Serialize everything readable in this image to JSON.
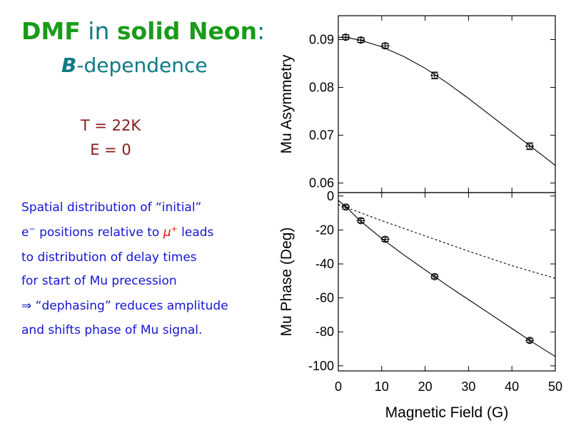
{
  "slide": {
    "title_part1": "DMF",
    "title_part2": " in ",
    "title_part3": "solid Neon",
    "title_part4": ":",
    "subtitle_symbol": "B",
    "subtitle_rest": "-dependence",
    "condition_temperature": "T = 22K",
    "condition_field": "E = 0",
    "description": {
      "line1": "Spatial distribution of “initial”",
      "line2_e": "e",
      "line2_e_sup": "−",
      "line2_mid": " positions relative to ",
      "line2_mu": "μ",
      "line2_mu_sup": "+",
      "line2_end": " leads",
      "line3": "to distribution of delay times",
      "line4": "for start of Mu precession",
      "line5": "⇒ “dephasing” reduces amplitude",
      "line6": "and shifts phase of Mu signal."
    }
  },
  "colors": {
    "title_green": "#1a9b1a",
    "subtitle_teal": "#107a86",
    "conditions_maroon": "#8b1a1a",
    "text_blue": "#1414d4",
    "mu_red": "#e01010"
  },
  "chart_data": [
    {
      "type": "scatter",
      "panel": "top",
      "ylabel": "Mu Asymmetry",
      "xlim": [
        0,
        50
      ],
      "ylim": [
        0.058,
        0.095
      ],
      "yticks": [
        0.06,
        0.07,
        0.08,
        0.09
      ],
      "ytick_labels": [
        "0.06",
        "0.07",
        "0.08",
        "0.09"
      ],
      "grid": false,
      "points": {
        "x": [
          1.7,
          5.2,
          10.8,
          22.2,
          44.1
        ],
        "y": [
          0.0905,
          0.0899,
          0.0887,
          0.0825,
          0.0677
        ],
        "xerr": [
          1.0,
          1.0,
          1.0,
          0.9,
          1.0
        ],
        "yerr": [
          0.0005,
          0.0005,
          0.0005,
          0.0007,
          0.0007
        ]
      },
      "fit_curve": {
        "style": "solid",
        "x": [
          0,
          2,
          5,
          10,
          15,
          20,
          25,
          30,
          35,
          40,
          45,
          50
        ],
        "y": [
          0.0905,
          0.0904,
          0.0899,
          0.0885,
          0.0865,
          0.084,
          0.081,
          0.0777,
          0.0742,
          0.0707,
          0.0672,
          0.0637
        ]
      }
    },
    {
      "type": "scatter",
      "panel": "bottom",
      "xlabel": "Magnetic Field (G)",
      "ylabel": "Mu Phase (Deg)",
      "xlim": [
        0,
        50
      ],
      "ylim": [
        -103,
        2
      ],
      "xticks": [
        0,
        10,
        20,
        30,
        40,
        50
      ],
      "xtick_labels": [
        "0",
        "10",
        "20",
        "30",
        "40",
        "50"
      ],
      "yticks": [
        0,
        -20,
        -40,
        -60,
        -80,
        -100
      ],
      "ytick_labels": [
        "0",
        "-20",
        "-40",
        "-60",
        "-80",
        "-100"
      ],
      "grid": false,
      "points": {
        "x": [
          1.7,
          5.2,
          10.8,
          22.2,
          44.1
        ],
        "y": [
          -6.5,
          -14.5,
          -25.5,
          -47.5,
          -85
        ],
        "xerr": [
          1.0,
          1.0,
          1.0,
          0.9,
          1.0
        ],
        "yerr": [
          1.2,
          1.2,
          1.2,
          1.2,
          1.2
        ]
      },
      "fit_curve": {
        "style": "solid",
        "x": [
          0,
          2,
          5,
          10,
          15,
          20,
          25,
          30,
          35,
          40,
          45,
          50
        ],
        "y": [
          -2.5,
          -7,
          -14.5,
          -25,
          -34.5,
          -43.5,
          -52.5,
          -61,
          -69.5,
          -78,
          -86.5,
          -94.5
        ]
      },
      "reference_curve": {
        "style": "dashed",
        "x": [
          0,
          10,
          20,
          30,
          40,
          50
        ],
        "y": [
          -5,
          -14.5,
          -23.5,
          -32.5,
          -41,
          -48.5
        ]
      }
    }
  ]
}
